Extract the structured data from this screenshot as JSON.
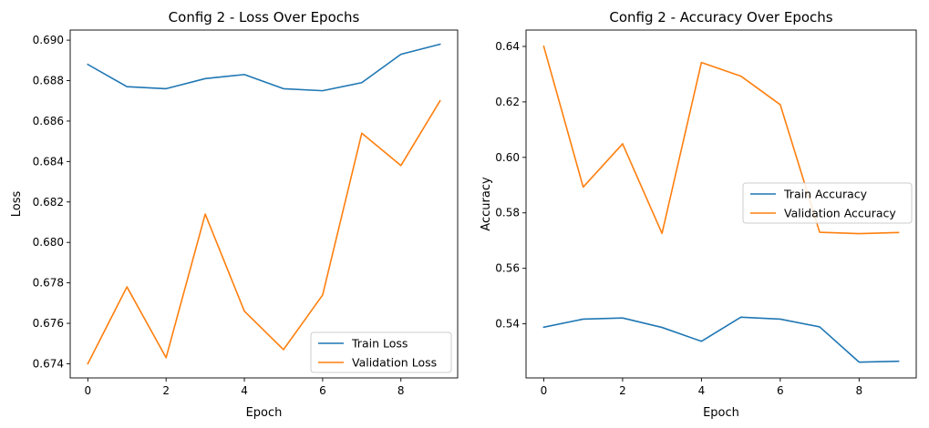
{
  "chart_data": [
    {
      "type": "line",
      "title": "Config 2 - Loss Over Epochs",
      "xlabel": "Epoch",
      "ylabel": "Loss",
      "x": [
        0,
        1,
        2,
        3,
        4,
        5,
        6,
        7,
        8,
        9
      ],
      "xlim": [
        -0.45,
        9.45
      ],
      "ylim": [
        0.6733,
        0.6905
      ],
      "xticks": [
        0,
        2,
        4,
        6,
        8
      ],
      "yticks": [
        0.674,
        0.676,
        0.678,
        0.68,
        0.682,
        0.684,
        0.686,
        0.688,
        0.69
      ],
      "ytick_labels": [
        "0.674",
        "0.676",
        "0.678",
        "0.680",
        "0.682",
        "0.684",
        "0.686",
        "0.688",
        "0.690"
      ],
      "legend_position": "lower-right",
      "series": [
        {
          "name": "Train Loss",
          "color": "#1f77b4",
          "values": [
            0.6888,
            0.6877,
            0.6876,
            0.6881,
            0.6883,
            0.6876,
            0.6875,
            0.6879,
            0.6893,
            0.6898
          ]
        },
        {
          "name": "Validation Loss",
          "color": "#ff7f0e",
          "values": [
            0.674,
            0.6778,
            0.6743,
            0.6814,
            0.6766,
            0.6747,
            0.6774,
            0.6854,
            0.6838,
            0.687
          ]
        }
      ]
    },
    {
      "type": "line",
      "title": "Config 2 - Accuracy Over Epochs",
      "xlabel": "Epoch",
      "ylabel": "Accuracy",
      "x": [
        0,
        1,
        2,
        3,
        4,
        5,
        6,
        7,
        8,
        9
      ],
      "xlim": [
        -0.45,
        9.45
      ],
      "ylim": [
        0.5205,
        0.6459
      ],
      "xticks": [
        0,
        2,
        4,
        6,
        8
      ],
      "yticks": [
        0.54,
        0.56,
        0.58,
        0.6,
        0.62,
        0.64
      ],
      "ytick_labels": [
        "0.54",
        "0.56",
        "0.58",
        "0.60",
        "0.62",
        "0.64"
      ],
      "legend_position": "center-right",
      "series": [
        {
          "name": "Train Accuracy",
          "color": "#1f77b4",
          "values": [
            0.5388,
            0.5417,
            0.5421,
            0.5387,
            0.5337,
            0.5424,
            0.5417,
            0.5389,
            0.5262,
            0.5265
          ]
        },
        {
          "name": "Validation Accuracy",
          "color": "#ff7f0e",
          "values": [
            0.64,
            0.5893,
            0.6049,
            0.5726,
            0.6342,
            0.6293,
            0.619,
            0.573,
            0.5725,
            0.5729
          ]
        }
      ]
    }
  ]
}
